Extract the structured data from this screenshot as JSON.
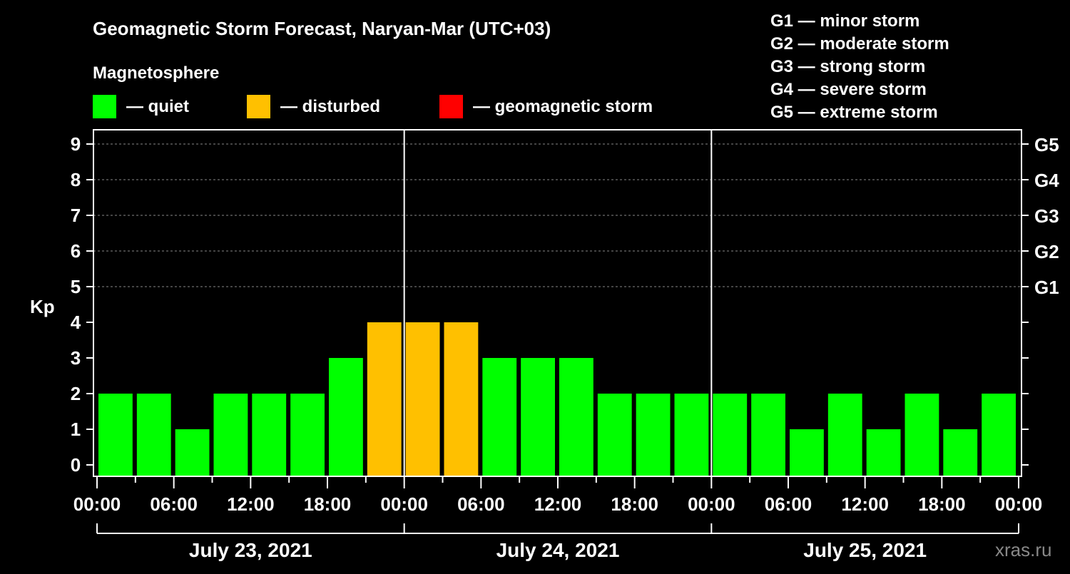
{
  "chart_data": {
    "type": "bar",
    "title": "Geomagnetic Storm Forecast, Naryan-Mar (UTC+03)",
    "legend_title": "Magnetosphere",
    "legend": [
      {
        "label": "— quiet",
        "color": "#00ff00"
      },
      {
        "label": "— disturbed",
        "color": "#ffc000"
      },
      {
        "label": "— geomagnetic storm",
        "color": "#ff0000"
      }
    ],
    "storm_scale": [
      "G1 — minor storm",
      "G2 — moderate storm",
      "G3 — strong storm",
      "G4 — severe storm",
      "G5 — extreme storm"
    ],
    "ylabel": "Kp",
    "ylim": [
      0,
      9
    ],
    "yticks": [
      "0",
      "1",
      "2",
      "3",
      "4",
      "5",
      "6",
      "7",
      "8",
      "9"
    ],
    "right_ticks": [
      {
        "kp": 5,
        "label": "G1"
      },
      {
        "kp": 6,
        "label": "G2"
      },
      {
        "kp": 7,
        "label": "G3"
      },
      {
        "kp": 8,
        "label": "G4"
      },
      {
        "kp": 9,
        "label": "G5"
      }
    ],
    "xticks": [
      "00:00",
      "06:00",
      "12:00",
      "18:00",
      "00:00",
      "06:00",
      "12:00",
      "18:00",
      "00:00",
      "06:00",
      "12:00",
      "18:00",
      "00:00"
    ],
    "days": [
      "July 23, 2021",
      "July 24, 2021",
      "July 25, 2021"
    ],
    "interval_hours": 3,
    "values": [
      2,
      2,
      1,
      2,
      2,
      2,
      3,
      4,
      4,
      4,
      3,
      3,
      3,
      2,
      2,
      2,
      2,
      2,
      1,
      2,
      1,
      2,
      1,
      2
    ],
    "grid": "dashed at Kp 5-9"
  },
  "watermark": "xras.ru"
}
